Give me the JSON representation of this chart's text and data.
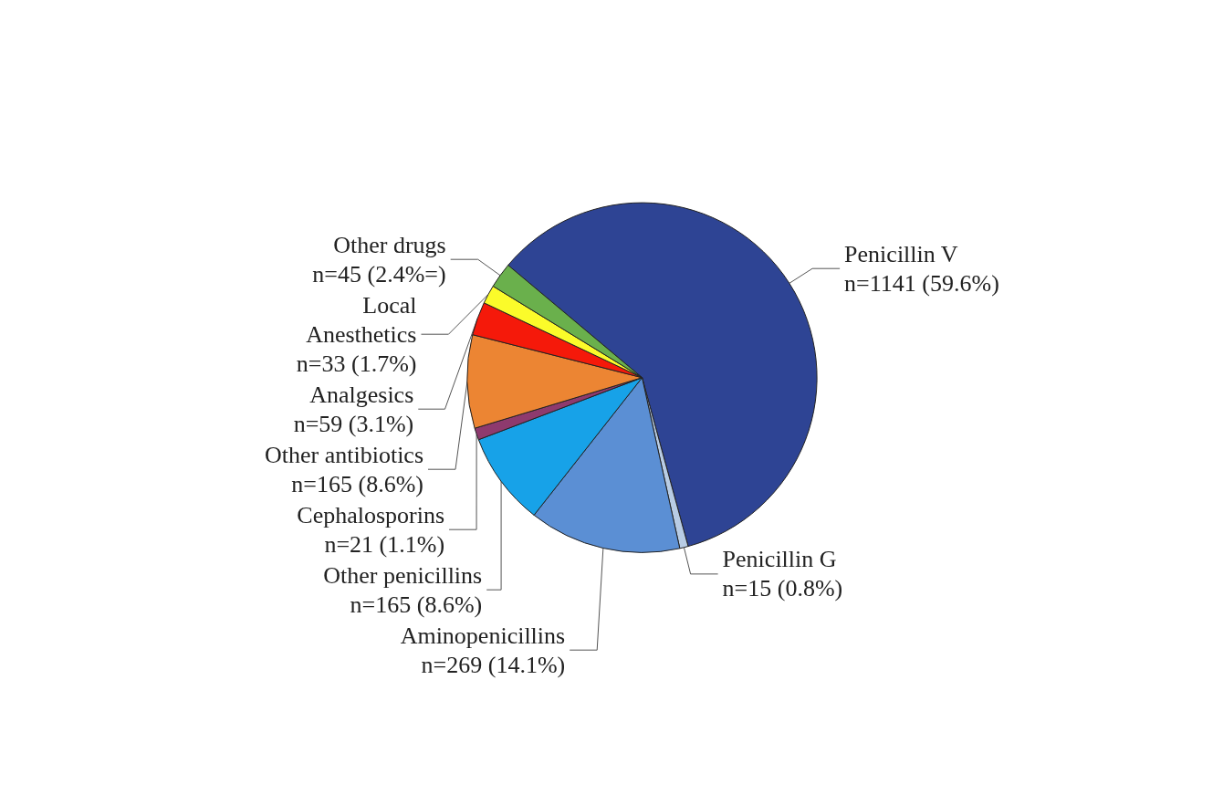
{
  "chart_data": {
    "type": "pie",
    "categories": [
      "Penicillin V",
      "Penicillin G",
      "Aminopenicillins",
      "Other penicillins",
      "Cephalosporins",
      "Other antibiotics",
      "Analgesics",
      "Local\nAnesthetics",
      "Other drugs"
    ],
    "values": [
      1141,
      15,
      269,
      165,
      21,
      165,
      59,
      33,
      45
    ],
    "value_labels": [
      "n=1141 (59.6%)",
      "n=15 (0.8%)",
      "n=269 (14.1%)",
      "n=165 (8.6%)",
      "n=21 (1.1%)",
      "n=165 (8.6%)",
      "n=59 (3.1%)",
      "n=33 (1.7%)",
      "n=45 (2.4%=)"
    ],
    "colors": [
      "#2e4494",
      "#b8cce4",
      "#5b8fd4",
      "#17a2e8",
      "#8e3a6e",
      "#ec8533",
      "#f5190a",
      "#fbfb2a",
      "#6ab04c"
    ],
    "legend": false
  }
}
